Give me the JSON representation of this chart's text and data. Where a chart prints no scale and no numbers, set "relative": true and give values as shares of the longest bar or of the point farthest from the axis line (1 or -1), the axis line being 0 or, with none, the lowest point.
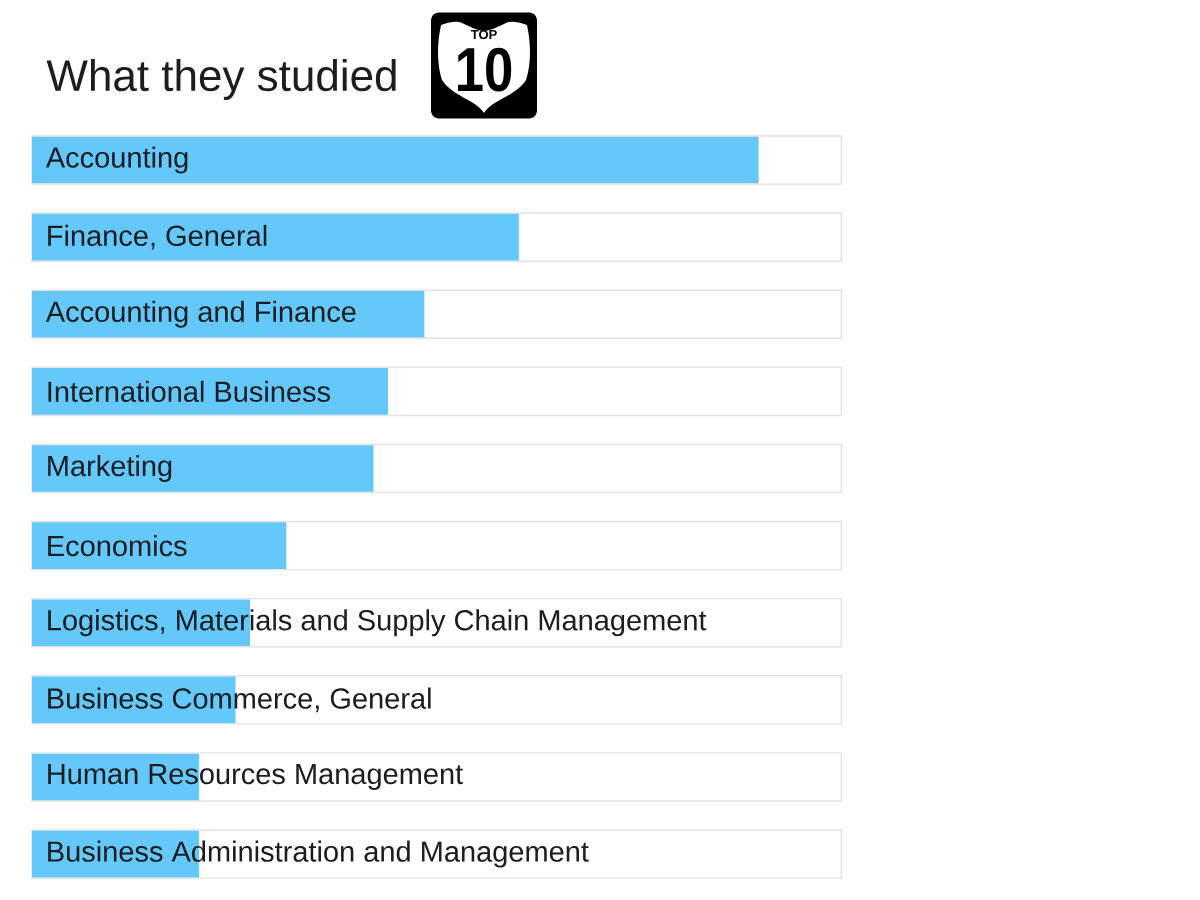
{
  "chart_data": {
    "type": "bar",
    "orientation": "horizontal",
    "relative": true,
    "title": "What they studied",
    "categories": [
      "Accounting",
      "Finance, General",
      "Accounting and Finance",
      "International Business",
      "Marketing",
      "Economics",
      "Logistics, Materials and Supply Chain Management",
      "Business Commerce, General",
      "Human Resources Management",
      "Business Administration and Management"
    ],
    "values": [
      1,
      0.67,
      0.54,
      0.49,
      0.47,
      0.35,
      0.3,
      0.28,
      0.23,
      0.23
    ],
    "color": "#64c8fa",
    "annotations": [
      "TOP",
      "10"
    ]
  }
}
